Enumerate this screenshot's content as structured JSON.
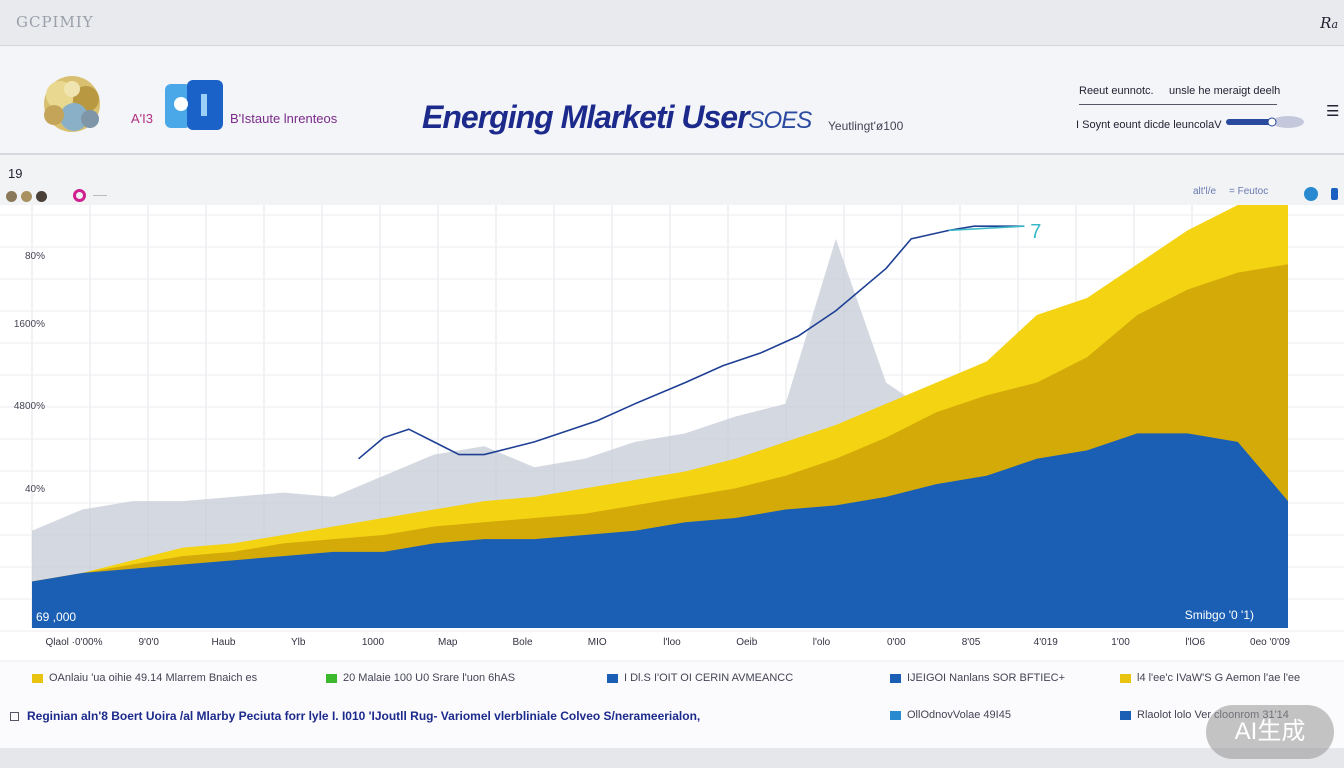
{
  "window": {
    "app_title": "GCPIMIY",
    "corner_label": "R",
    "corner_suffix": "a"
  },
  "header": {
    "small_tag": "A'I3",
    "subbrand": "B'Istaute lnrenteos",
    "title": "Energing Mlarketi User",
    "title_swirl": "SOES",
    "title_suffix": "Yeutlingt'ø100",
    "right_row1_a": "Reeut eunnotc.",
    "right_row1_b": "unsle he meraigt deelh",
    "right_row2": "I Soynt eount dicde leuncolaV"
  },
  "toolbar": {
    "number": "19",
    "right_label_1": "alt'l/e",
    "right_label_2": "= Feutoc"
  },
  "colors": {
    "blue": "#1a5fb4",
    "yellow": "#f3d312",
    "gold": "#d4aa08",
    "gray": "#c6cbd6",
    "line": "#1e3f94",
    "line_end": "#38b8c8"
  },
  "chart_data": {
    "type": "area",
    "y_tick_labels": [
      "80%",
      "1600%",
      "4800%",
      "40%"
    ],
    "x_tick_labels": [
      "Qlaol ·0'00%",
      "9'0'0",
      "Haub",
      "Ylb",
      "1000",
      "Map",
      "Bole",
      "MIO",
      "l'loo",
      "Oeib",
      "l'olo",
      "0'00",
      "8'05",
      "4'019",
      "1'00",
      "l'lO6",
      "0eo '0'09"
    ],
    "corner_left_label": "69 ,000",
    "corner_right_label": "Smibgo '0 '1)",
    "line_end_label": "7",
    "x": [
      0,
      4,
      8,
      12,
      16,
      20,
      24,
      28,
      32,
      36,
      40,
      44,
      48,
      52,
      56,
      60,
      64,
      68,
      72,
      76,
      80,
      84,
      88,
      92,
      96,
      100
    ],
    "series": [
      {
        "values": [
          11,
          13,
          14,
          15,
          16,
          17,
          18,
          18,
          20,
          21,
          21,
          22,
          23,
          25,
          26,
          28,
          29,
          31,
          34,
          36,
          40,
          42,
          46,
          46,
          44,
          30
        ]
      },
      {
        "values": [
          11,
          13,
          15,
          17,
          18,
          20,
          21,
          22,
          24,
          25,
          26,
          27,
          29,
          31,
          33,
          36,
          40,
          45,
          51,
          55,
          58,
          64,
          74,
          80,
          84,
          86
        ]
      },
      {
        "values": [
          11,
          13,
          16,
          19,
          20,
          22,
          24,
          26,
          28,
          30,
          31,
          33,
          35,
          37,
          40,
          44,
          48,
          53,
          58,
          63,
          74,
          78,
          86,
          94,
          100,
          100
        ]
      },
      {
        "values": [
          23,
          28,
          30,
          30,
          31,
          32,
          31,
          36,
          41,
          43,
          38,
          40,
          44,
          46,
          50,
          53,
          92,
          58,
          50,
          48,
          42,
          38,
          0,
          0,
          0,
          0
        ]
      }
    ],
    "line_series": {
      "x": [
        26,
        28,
        30,
        32,
        34,
        36,
        40,
        45,
        48,
        52,
        55,
        58,
        61,
        64,
        68,
        70,
        73,
        75,
        79
      ],
      "values": [
        40,
        45,
        47,
        44,
        41,
        41,
        44,
        49,
        53,
        58,
        62,
        65,
        69,
        75,
        85,
        92,
        94,
        95,
        95
      ]
    },
    "ylim": [
      0,
      100
    ],
    "grid": true
  },
  "legend": [
    {
      "color": "#e8c410",
      "label": "OAnlaiu 'ua oihie 49.14 Mlarrem Bnaich es"
    },
    {
      "color": "#3cb82c",
      "label": "20 Malaie 100 U0 Srare l'uon 6hAS"
    },
    {
      "color": "#1a5fb4",
      "label": "I Dl.S I'OIT OI CERIN AVMEANCC"
    },
    {
      "color": "#1a5fb4",
      "label": "IJEIGOI Nanlans SOR BFTIEC+"
    },
    {
      "color": "#e8c410",
      "label": "l4 l'ee'c IVaW'S G Aemon l'ae l'ee"
    }
  ],
  "legend_row2": [
    {
      "color": "#2a8ad0",
      "label": "OllOdnovVolae 49I45"
    },
    {
      "color": "#1a5fb4",
      "label": "Rlaolot lolo Ver cloonrom 31'14"
    }
  ],
  "caption": "Reginian aln'8 Boert Uoira /al Mlarby Peciuta forr lyle I. I010 'IJoutll Rug- Variomel vlerbliniale Colveo S/nerameerialon,",
  "watermark": "AI生成"
}
